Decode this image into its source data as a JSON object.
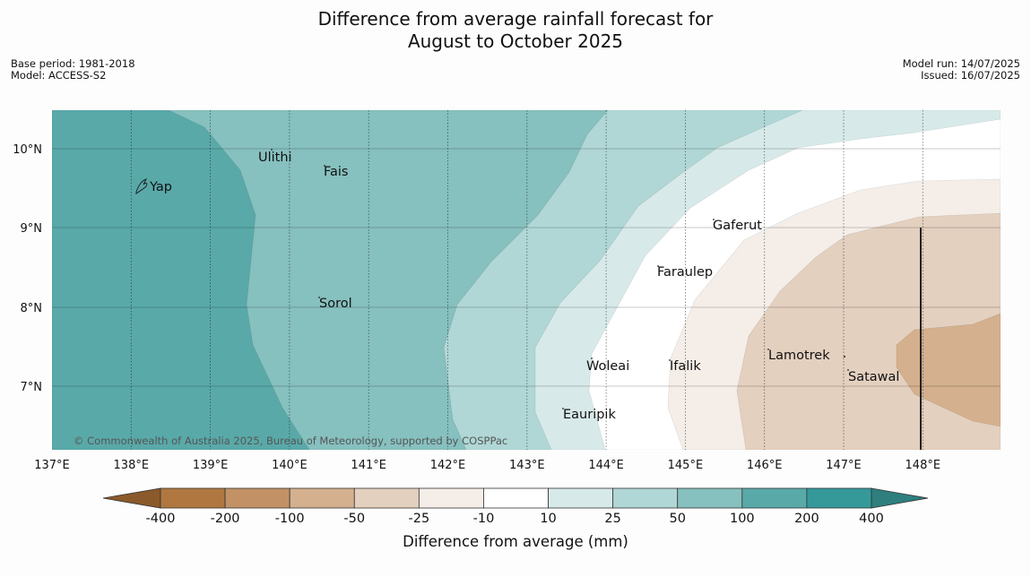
{
  "title_line1": "Difference from average rainfall forecast for",
  "title_line2": "August to October 2025",
  "meta_left": [
    "Base period: 1981-2018",
    "Model: ACCESS-S2"
  ],
  "meta_right": [
    "Model run: 14/07/2025",
    "Issued: 16/07/2025"
  ],
  "lon_labels": [
    "137°E",
    "138°E",
    "139°E",
    "140°E",
    "141°E",
    "142°E",
    "143°E",
    "144°E",
    "145°E",
    "146°E",
    "147°E",
    "148°E"
  ],
  "lat_labels": [
    "10°N",
    "9°N",
    "8°N",
    "7°N"
  ],
  "places": [
    "Yap",
    "Ulithi",
    "Fais",
    "Gaferut",
    "Faraulep",
    "Sorol",
    "Woleai",
    "Ifalik",
    "Lamotrek",
    "Satawal",
    "Eauripik"
  ],
  "credit": "© Commonwealth of Australia 2025, Bureau of Meteorology, supported by COSPPac",
  "colorbar": {
    "labels": [
      "-400",
      "-200",
      "-100",
      "-50",
      "-25",
      "-10",
      "10",
      "25",
      "50",
      "100",
      "200",
      "400"
    ],
    "title": "Difference from average (mm)",
    "colors": [
      "#8b5a2b",
      "#b07840",
      "#c29266",
      "#d4b08e",
      "#e4d0bf",
      "#f5eee8",
      "#ffffff",
      "#d7eae9",
      "#b0d7d6",
      "#86c0bf",
      "#5aa9a9",
      "#35999a",
      "#2e7f7e"
    ]
  },
  "map_colors": {
    "ge200": "#5aa9a9",
    "100to200": "#86c0bf",
    "50to100": "#b0d7d6",
    "25to50": "#d7eae9",
    "neutral": "#ffffff",
    "m10tom25": "#f5eee8",
    "m25tom50": "#e4d0bf",
    "m50tom100": "#d4b08e"
  }
}
